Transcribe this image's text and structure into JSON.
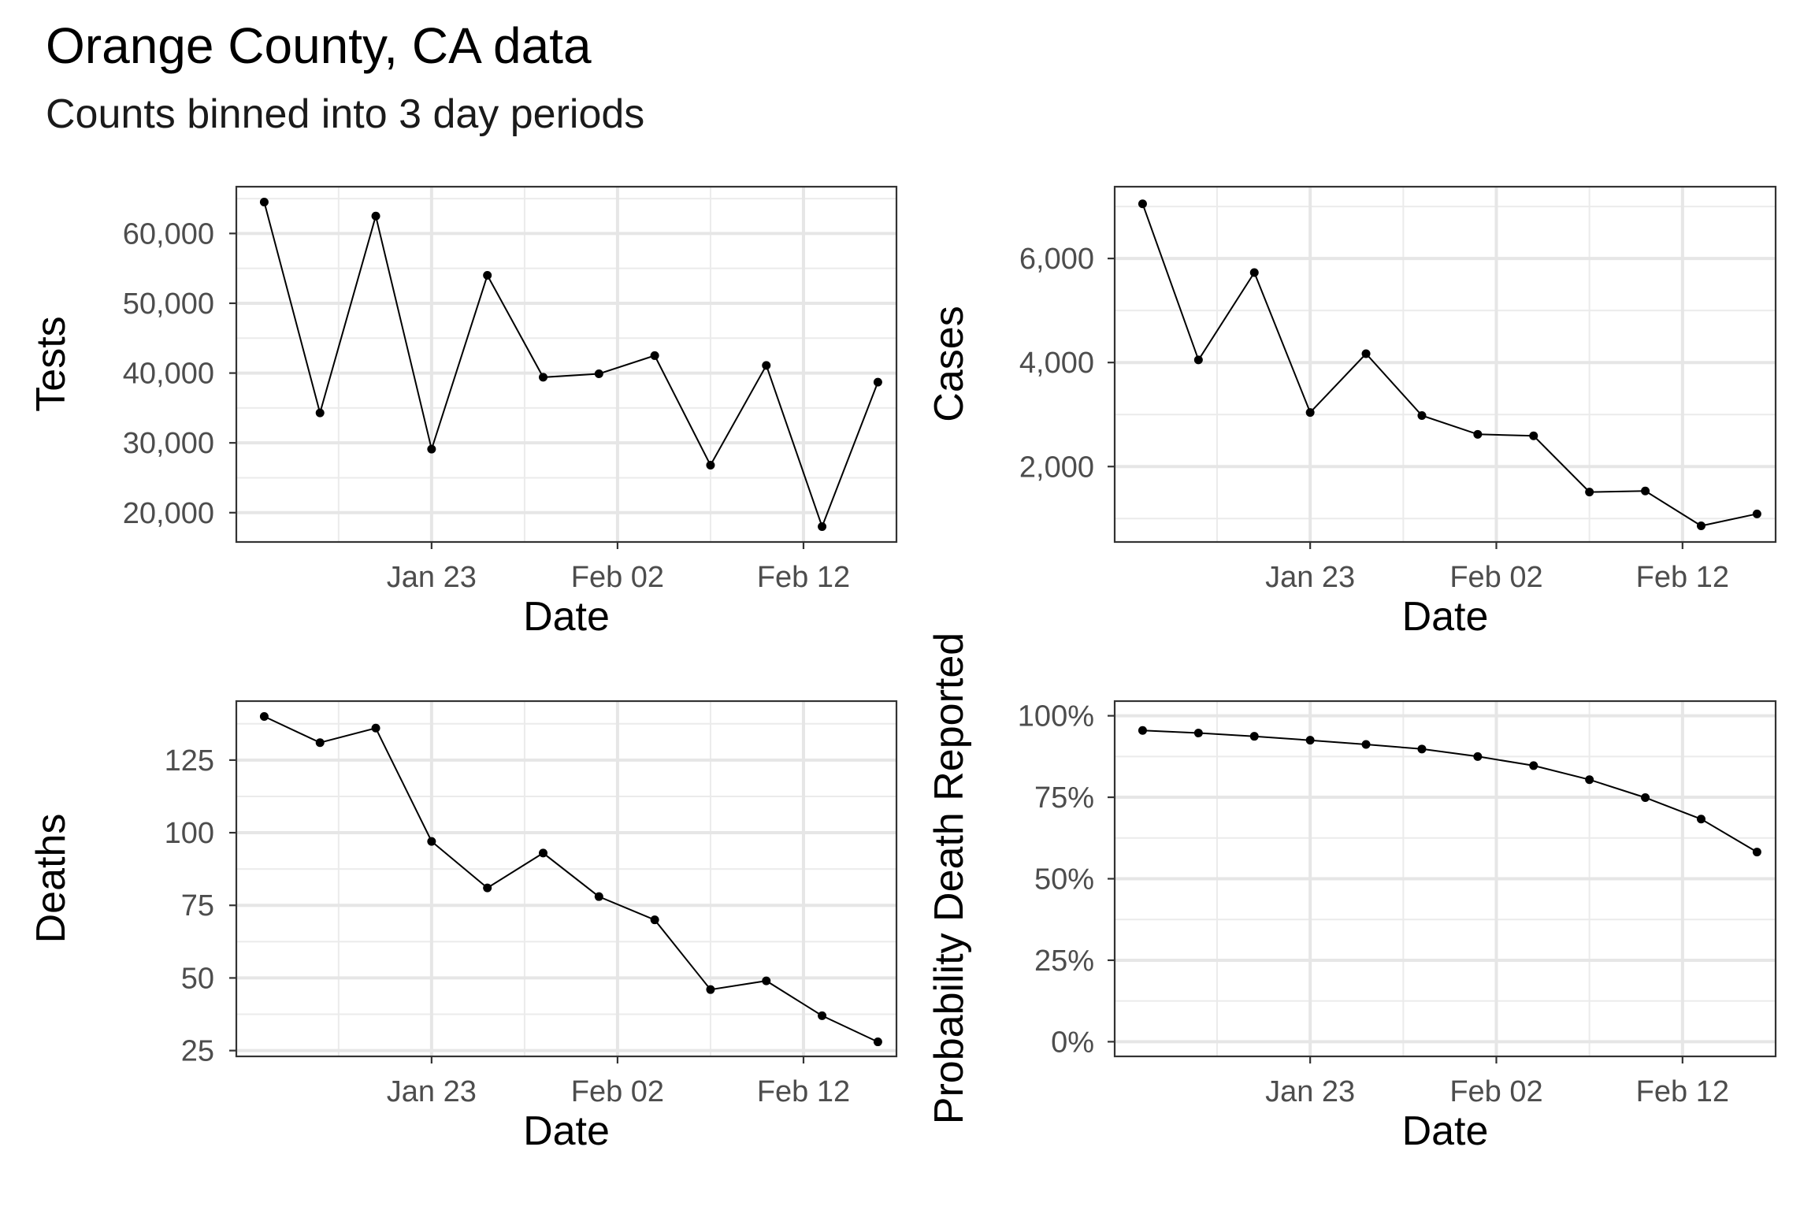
{
  "title": "Orange County, CA data",
  "subtitle": "Counts binned into 3 day periods",
  "chart_data": [
    {
      "type": "line",
      "xlabel": "Date",
      "ylabel": "Tests",
      "x_tick_labels": [
        "Jan 23",
        "Feb 02",
        "Feb 12"
      ],
      "y_tick_labels": [
        "20,000",
        "30,000",
        "40,000",
        "50,000",
        "60,000"
      ],
      "y_ticks": [
        20000,
        30000,
        40000,
        50000,
        60000
      ],
      "ylim": [
        15800,
        66700
      ],
      "x": [
        "2022-01-14",
        "2022-01-17",
        "2022-01-20",
        "2022-01-23",
        "2022-01-26",
        "2022-01-29",
        "2022-02-01",
        "2022-02-04",
        "2022-02-07",
        "2022-02-10",
        "2022-02-13",
        "2022-02-16"
      ],
      "values": [
        64500,
        34300,
        62500,
        29100,
        54000,
        39400,
        39900,
        42500,
        26800,
        41100,
        18000,
        38700
      ],
      "grid": true
    },
    {
      "type": "line",
      "xlabel": "Date",
      "ylabel": "Cases",
      "x_tick_labels": [
        "Jan 23",
        "Feb 02",
        "Feb 12"
      ],
      "y_tick_labels": [
        "2,000",
        "4,000",
        "6,000"
      ],
      "y_ticks": [
        2000,
        4000,
        6000
      ],
      "ylim": [
        550,
        7380
      ],
      "x": [
        "2022-01-14",
        "2022-01-17",
        "2022-01-20",
        "2022-01-23",
        "2022-01-26",
        "2022-01-29",
        "2022-02-01",
        "2022-02-04",
        "2022-02-07",
        "2022-02-10",
        "2022-02-13",
        "2022-02-16"
      ],
      "values": [
        7050,
        4050,
        5730,
        3040,
        4170,
        2980,
        2620,
        2590,
        1510,
        1530,
        860,
        1090
      ],
      "grid": true
    },
    {
      "type": "line",
      "xlabel": "Date",
      "ylabel": "Deaths",
      "x_tick_labels": [
        "Jan 23",
        "Feb 02",
        "Feb 12"
      ],
      "y_tick_labels": [
        "25",
        "50",
        "75",
        "100",
        "125"
      ],
      "y_ticks": [
        25,
        50,
        75,
        100,
        125
      ],
      "ylim": [
        23,
        145.3
      ],
      "x": [
        "2022-01-14",
        "2022-01-17",
        "2022-01-20",
        "2022-01-23",
        "2022-01-26",
        "2022-01-29",
        "2022-02-01",
        "2022-02-04",
        "2022-02-07",
        "2022-02-10",
        "2022-02-13",
        "2022-02-16"
      ],
      "values": [
        140,
        131,
        136,
        97,
        81,
        93,
        78,
        70,
        46,
        49,
        37,
        28
      ],
      "grid": true
    },
    {
      "type": "line",
      "xlabel": "Date",
      "ylabel": "Probability Death Reported",
      "x_tick_labels": [
        "Jan 23",
        "Feb 02",
        "Feb 12"
      ],
      "y_tick_labels": [
        "0%",
        "25%",
        "50%",
        "75%",
        "100%"
      ],
      "y_ticks": [
        0,
        0.25,
        0.5,
        0.75,
        1.0
      ],
      "ylim": [
        -0.045,
        1.045
      ],
      "x": [
        "2022-01-14",
        "2022-01-17",
        "2022-01-20",
        "2022-01-23",
        "2022-01-26",
        "2022-01-29",
        "2022-02-01",
        "2022-02-04",
        "2022-02-07",
        "2022-02-10",
        "2022-02-13",
        "2022-02-16"
      ],
      "values": [
        0.955,
        0.947,
        0.937,
        0.925,
        0.912,
        0.898,
        0.875,
        0.847,
        0.804,
        0.749,
        0.683,
        0.582
      ],
      "grid": true
    }
  ]
}
